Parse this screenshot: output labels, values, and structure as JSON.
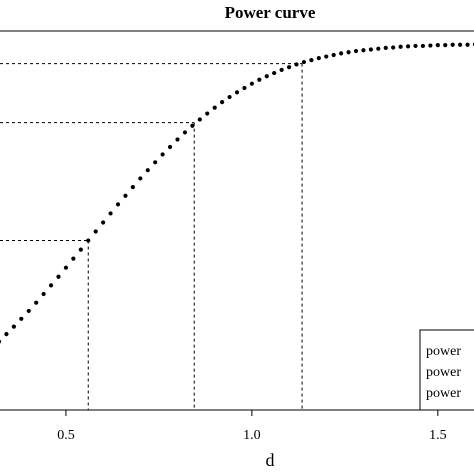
{
  "chart_data": {
    "type": "scatter",
    "title": "Power curve",
    "xlabel": "d",
    "x": [
      0.32,
      0.34,
      0.36,
      0.38,
      0.4,
      0.42,
      0.44,
      0.46,
      0.48,
      0.5,
      0.52,
      0.54,
      0.56,
      0.58,
      0.6,
      0.62,
      0.64,
      0.66,
      0.68,
      0.7,
      0.72,
      0.74,
      0.76,
      0.78,
      0.8,
      0.82,
      0.84,
      0.86,
      0.88,
      0.9,
      0.92,
      0.94,
      0.96,
      0.98,
      1.0,
      1.02,
      1.04,
      1.06,
      1.08,
      1.1,
      1.12,
      1.14,
      1.16,
      1.18,
      1.2,
      1.22,
      1.24,
      1.26,
      1.28,
      1.3,
      1.32,
      1.34,
      1.36,
      1.38,
      1.4,
      1.42,
      1.44,
      1.46,
      1.48,
      1.5,
      1.52,
      1.54,
      1.56,
      1.58,
      1.6
    ],
    "values": [
      0.243,
      0.262,
      0.281,
      0.301,
      0.321,
      0.342,
      0.364,
      0.386,
      0.408,
      0.431,
      0.454,
      0.477,
      0.5,
      0.523,
      0.546,
      0.569,
      0.592,
      0.614,
      0.636,
      0.658,
      0.679,
      0.699,
      0.719,
      0.738,
      0.757,
      0.775,
      0.792,
      0.808,
      0.823,
      0.838,
      0.852,
      0.865,
      0.877,
      0.888,
      0.899,
      0.909,
      0.918,
      0.926,
      0.934,
      0.941,
      0.948,
      0.954,
      0.959,
      0.964,
      0.968,
      0.972,
      0.976,
      0.979,
      0.982,
      0.984,
      0.986,
      0.988,
      0.99,
      0.991,
      0.993,
      0.994,
      0.995,
      0.995,
      0.996,
      0.997,
      0.997,
      0.998,
      0.998,
      0.998,
      0.999
    ],
    "color": "#000000",
    "guides": {
      "x": [
        0.56,
        0.845,
        1.135
      ],
      "y": [
        0.5,
        0.8,
        0.95
      ]
    },
    "xlim": [
      0.32,
      1.6
    ],
    "ylim": [
      0.069,
      1.033
    ],
    "xticks": [
      0.5,
      {
        "value": 1,
        "label": "1.0"
      },
      1.5
    ],
    "legend": {
      "entries": [
        "power",
        "power",
        "power"
      ]
    }
  }
}
